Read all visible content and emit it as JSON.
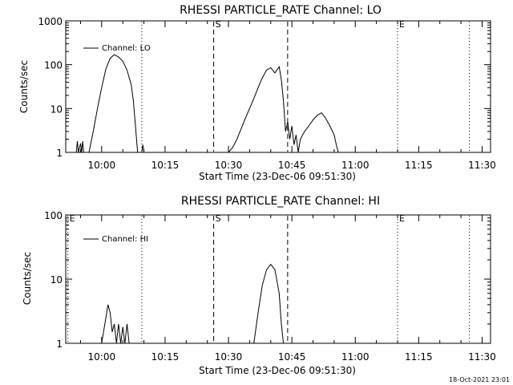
{
  "footer_timestamp": "18-Oct-2021 23:01",
  "chart_data": [
    {
      "type": "line",
      "title": "RHESSI PARTICLE_RATE Channel: LO",
      "xlabel": "Start Time (23-Dec-06 09:51:30)",
      "ylabel": "Counts/sec",
      "yscale": "log",
      "xlim": [
        "09:51:30",
        "11:32:00"
      ],
      "ylim": [
        1,
        1000
      ],
      "x_ticks": [
        "10:00",
        "10:15",
        "10:30",
        "10:45",
        "11:00",
        "11:15",
        "11:30"
      ],
      "y_ticks": [
        "1",
        "10",
        "100",
        "1000"
      ],
      "legend": {
        "placement": "top-left",
        "entries": [
          "Channel: LO"
        ]
      },
      "markers": [
        {
          "time": "10:09:30",
          "style": "dotted",
          "label": ""
        },
        {
          "time": "10:26:30",
          "style": "dashed",
          "label": "S"
        },
        {
          "time": "10:44:00",
          "style": "dashed",
          "label": ""
        },
        {
          "time": "11:10:00",
          "style": "dotted",
          "label": "E"
        },
        {
          "time": "11:27:00",
          "style": "dotted",
          "label": ""
        }
      ],
      "series": [
        {
          "name": "Channel: LO",
          "points": [
            [
              "09:54:00",
              1
            ],
            [
              "09:54:15",
              1.8
            ],
            [
              "09:54:30",
              1
            ],
            [
              "09:55:00",
              1.6
            ],
            [
              "09:55:15",
              1
            ],
            [
              "09:55:30",
              1.8
            ],
            [
              "09:55:45",
              1
            ],
            [
              "09:57:00",
              1
            ],
            [
              "09:58:00",
              3
            ],
            [
              "09:59:00",
              10
            ],
            [
              "10:00:00",
              30
            ],
            [
              "10:01:00",
              80
            ],
            [
              "10:02:00",
              140
            ],
            [
              "10:03:00",
              170
            ],
            [
              "10:04:00",
              150
            ],
            [
              "10:05:00",
              120
            ],
            [
              "10:06:00",
              75
            ],
            [
              "10:07:00",
              35
            ],
            [
              "10:07:30",
              15
            ],
            [
              "10:08:00",
              4
            ],
            [
              "10:08:30",
              1
            ],
            [
              "10:09:30",
              1
            ],
            [
              "10:09:45",
              1.5
            ],
            [
              "10:10:00",
              1
            ],
            [
              "10:30:00",
              1
            ],
            [
              "10:31:00",
              1.3
            ],
            [
              "10:32:00",
              2
            ],
            [
              "10:33:00",
              3.5
            ],
            [
              "10:34:00",
              6
            ],
            [
              "10:35:00",
              10
            ],
            [
              "10:36:00",
              17
            ],
            [
              "10:37:00",
              30
            ],
            [
              "10:38:00",
              50
            ],
            [
              "10:39:00",
              75
            ],
            [
              "10:40:00",
              85
            ],
            [
              "10:41:00",
              65
            ],
            [
              "10:42:00",
              90
            ],
            [
              "10:42:30",
              45
            ],
            [
              "10:43:00",
              15
            ],
            [
              "10:43:30",
              3
            ],
            [
              "10:44:00",
              5
            ],
            [
              "10:44:30",
              2
            ],
            [
              "10:45:00",
              4
            ],
            [
              "10:45:30",
              1.5
            ],
            [
              "10:46:00",
              2.5
            ],
            [
              "10:46:30",
              1
            ],
            [
              "10:47:00",
              2
            ],
            [
              "10:48:00",
              3
            ],
            [
              "10:49:00",
              4
            ],
            [
              "10:50:00",
              5.5
            ],
            [
              "10:51:00",
              7
            ],
            [
              "10:52:00",
              8
            ],
            [
              "10:53:00",
              6
            ],
            [
              "10:54:00",
              4
            ],
            [
              "10:55:00",
              2.5
            ],
            [
              "10:55:30",
              1.5
            ],
            [
              "10:56:00",
              1
            ]
          ]
        }
      ]
    },
    {
      "type": "line",
      "title": "RHESSI PARTICLE_RATE Channel: HI",
      "xlabel": "Start Time (23-Dec-06 09:51:30)",
      "ylabel": "Counts/sec",
      "yscale": "log",
      "xlim": [
        "09:51:30",
        "11:32:00"
      ],
      "ylim": [
        1,
        100
      ],
      "x_ticks": [
        "10:00",
        "10:15",
        "10:30",
        "10:45",
        "11:00",
        "11:15",
        "11:30"
      ],
      "y_ticks": [
        "1",
        "10",
        "100"
      ],
      "legend": {
        "placement": "top-left",
        "entries": [
          "Channel: HI"
        ]
      },
      "markers": [
        {
          "time": "09:52:00",
          "style": "dotted",
          "label": "E"
        },
        {
          "time": "10:09:30",
          "style": "dotted",
          "label": ""
        },
        {
          "time": "10:26:30",
          "style": "dashed",
          "label": "S"
        },
        {
          "time": "10:44:00",
          "style": "dashed",
          "label": ""
        },
        {
          "time": "11:10:00",
          "style": "dotted",
          "label": "E"
        },
        {
          "time": "11:27:00",
          "style": "dotted",
          "label": ""
        }
      ],
      "series": [
        {
          "name": "Channel: HI",
          "points": [
            [
              "10:00:00",
              1
            ],
            [
              "10:01:00",
              2.5
            ],
            [
              "10:01:30",
              4
            ],
            [
              "10:02:00",
              3
            ],
            [
              "10:02:30",
              1.5
            ],
            [
              "10:03:00",
              2
            ],
            [
              "10:03:30",
              1
            ],
            [
              "10:04:00",
              2
            ],
            [
              "10:04:30",
              1
            ],
            [
              "10:05:00",
              1.8
            ],
            [
              "10:05:30",
              1
            ],
            [
              "10:06:00",
              2
            ],
            [
              "10:06:30",
              1
            ],
            [
              "10:36:00",
              1
            ],
            [
              "10:37:00",
              3
            ],
            [
              "10:38:00",
              8
            ],
            [
              "10:39:00",
              14
            ],
            [
              "10:40:00",
              17
            ],
            [
              "10:41:00",
              14
            ],
            [
              "10:42:00",
              6
            ],
            [
              "10:42:30",
              2
            ],
            [
              "10:43:00",
              1
            ]
          ]
        }
      ]
    }
  ]
}
